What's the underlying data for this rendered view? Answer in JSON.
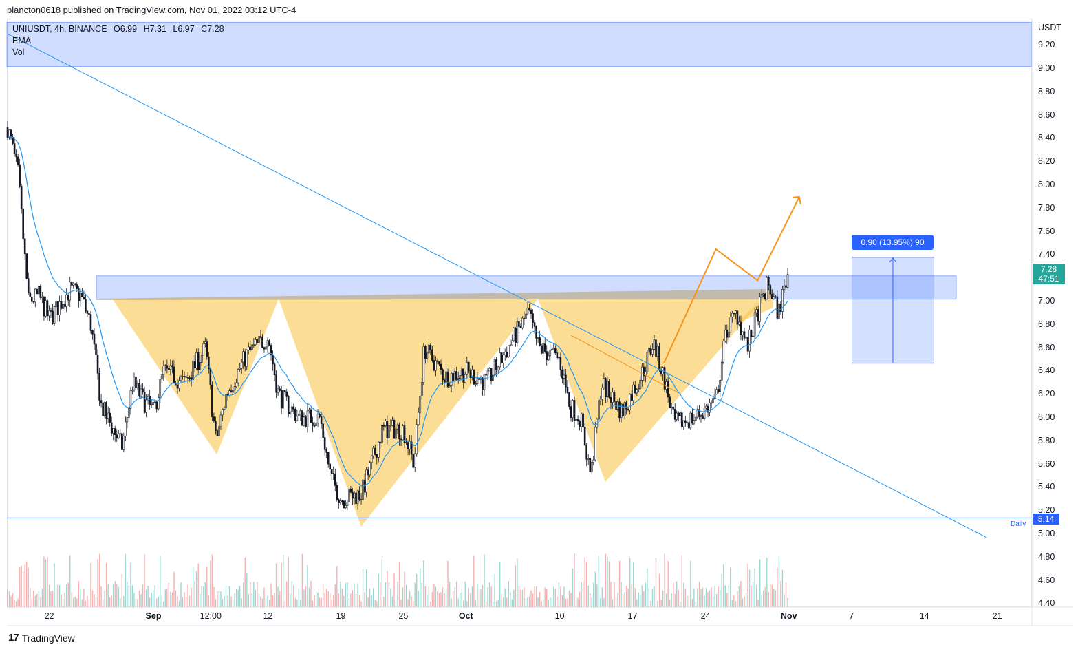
{
  "header": {
    "published_line": "plancton0618 published on TradingView.com, Nov 01, 2022 03:12 UTC-4"
  },
  "legend": {
    "symbol": "UNIUSDT, 4h, BINANCE",
    "open": "O6.99",
    "high": "H7.31",
    "low": "L6.97",
    "close": "C7.28",
    "indicator_1": "EMA",
    "indicator_2": "Vol"
  },
  "price_axis": {
    "currency": "USDT",
    "ticks": [
      "9.20",
      "9.00",
      "8.80",
      "8.60",
      "8.40",
      "8.20",
      "8.00",
      "7.80",
      "7.60",
      "7.40",
      "7.00",
      "6.80",
      "6.60",
      "6.40",
      "6.20",
      "6.00",
      "5.80",
      "5.60",
      "5.40",
      "5.20",
      "5.00",
      "4.80",
      "4.60",
      "4.40"
    ]
  },
  "time_axis": {
    "ticks": [
      "22",
      "Sep",
      "12:00",
      "12",
      "19",
      "25",
      "Oct",
      "10",
      "17",
      "24",
      "Nov",
      "7",
      "14",
      "21"
    ]
  },
  "badges": {
    "current_price": "7.28",
    "countdown": "47:51",
    "daily_price": "5.14",
    "daily_label": "Daily",
    "measure_label": "0.90 (13.95%) 90"
  },
  "colors": {
    "up": "#26a69a",
    "down": "#ef5350",
    "ema": "#2196f3",
    "trendline": "#2196f3",
    "triangle_fill": "#f9c74f",
    "zone_fill": "#2962ff",
    "projection": "#f7931a",
    "badge_blue": "#2962ff",
    "badge_green": "#26a69a"
  },
  "chart_data": {
    "type": "candlestick",
    "symbol": "UNIUSDT",
    "interval": "4h",
    "exchange": "BINANCE",
    "last_ohlc": {
      "open": 6.99,
      "high": 7.31,
      "low": 6.97,
      "close": 7.28
    },
    "ylim": [
      4.4,
      9.3
    ],
    "x_range": [
      "2022-08-18",
      "2022-11-22"
    ],
    "price_path": [
      {
        "date": "2022-08-18",
        "price": 8.5
      },
      {
        "date": "2022-08-19",
        "price": 8.1
      },
      {
        "date": "2022-08-20",
        "price": 7.0
      },
      {
        "date": "2022-08-21",
        "price": 7.05
      },
      {
        "date": "2022-08-22",
        "price": 6.85
      },
      {
        "date": "2022-08-24",
        "price": 7.1
      },
      {
        "date": "2022-08-25",
        "price": 7.05
      },
      {
        "date": "2022-08-26",
        "price": 6.8
      },
      {
        "date": "2022-08-27",
        "price": 6.1
      },
      {
        "date": "2022-08-29",
        "price": 5.75
      },
      {
        "date": "2022-08-30",
        "price": 6.3
      },
      {
        "date": "2022-08-31",
        "price": 6.15
      },
      {
        "date": "2022-09-01",
        "price": 6.05
      },
      {
        "date": "2022-09-02",
        "price": 6.4
      },
      {
        "date": "2022-09-04",
        "price": 6.3
      },
      {
        "date": "2022-09-06",
        "price": 6.6
      },
      {
        "date": "2022-09-07",
        "price": 5.8
      },
      {
        "date": "2022-09-08",
        "price": 6.2
      },
      {
        "date": "2022-09-10",
        "price": 6.55
      },
      {
        "date": "2022-09-12",
        "price": 6.7
      },
      {
        "date": "2022-09-13",
        "price": 6.2
      },
      {
        "date": "2022-09-15",
        "price": 6.0
      },
      {
        "date": "2022-09-17",
        "price": 6.0
      },
      {
        "date": "2022-09-18",
        "price": 5.5
      },
      {
        "date": "2022-09-19",
        "price": 5.3
      },
      {
        "date": "2022-09-21",
        "price": 5.35
      },
      {
        "date": "2022-09-23",
        "price": 5.9
      },
      {
        "date": "2022-09-25",
        "price": 5.9
      },
      {
        "date": "2022-09-26",
        "price": 5.6
      },
      {
        "date": "2022-09-27",
        "price": 6.6
      },
      {
        "date": "2022-09-29",
        "price": 6.35
      },
      {
        "date": "2022-10-01",
        "price": 6.4
      },
      {
        "date": "2022-10-03",
        "price": 6.3
      },
      {
        "date": "2022-10-05",
        "price": 6.6
      },
      {
        "date": "2022-10-07",
        "price": 6.9
      },
      {
        "date": "2022-10-08",
        "price": 6.6
      },
      {
        "date": "2022-10-10",
        "price": 6.5
      },
      {
        "date": "2022-10-11",
        "price": 6.1
      },
      {
        "date": "2022-10-12",
        "price": 6.0
      },
      {
        "date": "2022-10-13",
        "price": 5.5
      },
      {
        "date": "2022-10-14",
        "price": 6.3
      },
      {
        "date": "2022-10-16",
        "price": 6.05
      },
      {
        "date": "2022-10-18",
        "price": 6.4
      },
      {
        "date": "2022-10-19",
        "price": 6.65
      },
      {
        "date": "2022-10-20",
        "price": 6.35
      },
      {
        "date": "2022-10-21",
        "price": 5.95
      },
      {
        "date": "2022-10-23",
        "price": 6.0
      },
      {
        "date": "2022-10-25",
        "price": 6.15
      },
      {
        "date": "2022-10-26",
        "price": 6.75
      },
      {
        "date": "2022-10-27",
        "price": 6.9
      },
      {
        "date": "2022-10-28",
        "price": 6.6
      },
      {
        "date": "2022-10-29",
        "price": 6.9
      },
      {
        "date": "2022-10-30",
        "price": 7.15
      },
      {
        "date": "2022-10-31",
        "price": 6.9
      },
      {
        "date": "2022-11-01",
        "price": 7.28
      }
    ],
    "annotations": {
      "resistance_zone": [
        7.02,
        7.22
      ],
      "top_zone": [
        9.02,
        9.4
      ],
      "daily_level": 5.14,
      "trendline": [
        {
          "date": "2022-08-18",
          "price": 9.3
        },
        {
          "date": "2022-11-20",
          "price": 4.97
        }
      ],
      "measure": {
        "from": 6.47,
        "to": 7.38,
        "label": "0.90 (13.95%) 90"
      },
      "projection": [
        {
          "date": "2022-10-20",
          "price": 6.47
        },
        {
          "date": "2022-10-25",
          "price": 7.45
        },
        {
          "date": "2022-10-29",
          "price": 7.18
        },
        {
          "date": "2022-11-02",
          "price": 7.9
        }
      ]
    }
  }
}
